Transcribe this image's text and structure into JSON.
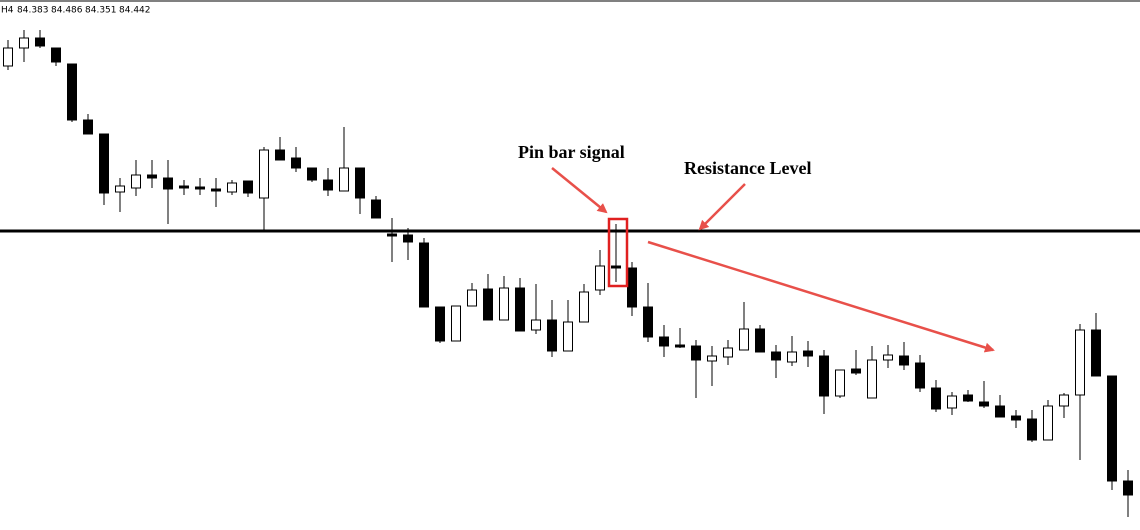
{
  "chart_data": {
    "type": "candlestick",
    "header": {
      "timeframe": "H4",
      "ohlc": [
        84.383,
        84.486,
        84.351,
        84.442
      ]
    },
    "ylim": [
      83.5,
      86.15
    ],
    "series": [
      {
        "name": "price",
        "color": "#000000",
        "open": [
          85.82,
          85.91,
          85.96,
          85.91,
          85.83,
          85.55,
          85.48,
          85.19,
          85.21,
          85.275,
          85.26,
          85.22,
          85.215,
          85.205,
          85.19,
          85.245,
          85.16,
          85.4,
          85.36,
          85.31,
          85.25,
          85.195,
          85.31,
          85.15,
          84.98,
          84.975,
          84.935,
          84.615,
          84.445,
          84.62,
          84.705,
          84.55,
          84.71,
          84.5,
          84.55,
          84.395,
          84.54,
          84.7,
          84.82,
          84.81,
          84.615,
          84.465,
          84.425,
          84.42,
          84.345,
          84.365,
          84.4,
          84.505,
          84.39,
          84.34,
          84.395,
          84.37,
          84.17,
          84.305,
          84.16,
          84.35,
          84.37,
          84.335,
          84.21,
          84.11,
          84.175,
          84.14,
          84.12,
          84.07,
          84.055,
          83.95,
          84.12,
          84.175,
          84.5,
          84.27,
          83.745
        ],
        "high": [
          85.95,
          86.0,
          86.0,
          85.91,
          85.83,
          85.58,
          85.48,
          85.26,
          85.35,
          85.35,
          85.35,
          85.25,
          85.26,
          85.26,
          85.25,
          85.245,
          85.415,
          85.465,
          85.415,
          85.31,
          85.31,
          85.515,
          85.31,
          85.17,
          85.06,
          85.01,
          84.96,
          84.615,
          84.62,
          84.735,
          84.78,
          84.77,
          84.76,
          84.73,
          84.65,
          84.65,
          84.73,
          84.9,
          85.03,
          84.84,
          84.735,
          84.525,
          84.51,
          84.45,
          84.42,
          84.45,
          84.64,
          84.525,
          84.425,
          84.47,
          84.445,
          84.4,
          84.3,
          84.4,
          84.42,
          84.425,
          84.44,
          84.375,
          84.25,
          84.19,
          84.2,
          84.245,
          84.175,
          84.1,
          84.1,
          84.15,
          84.185,
          84.53,
          84.585,
          84.27,
          83.8
        ],
        "low": [
          85.8,
          85.84,
          85.91,
          85.82,
          85.54,
          85.48,
          85.125,
          85.09,
          85.17,
          85.21,
          85.03,
          85.175,
          85.175,
          85.115,
          85.175,
          85.165,
          85.0,
          85.35,
          85.29,
          85.24,
          85.17,
          85.195,
          85.08,
          85.06,
          84.84,
          84.85,
          84.615,
          84.435,
          84.445,
          84.62,
          84.55,
          84.55,
          84.495,
          84.48,
          84.365,
          84.395,
          84.54,
          84.675,
          84.74,
          84.57,
          84.44,
          84.365,
          84.41,
          84.16,
          84.22,
          84.325,
          84.4,
          84.39,
          84.26,
          84.32,
          84.315,
          84.08,
          84.16,
          84.275,
          84.16,
          84.31,
          84.3,
          84.19,
          84.09,
          84.075,
          84.14,
          84.11,
          84.065,
          84.01,
          83.94,
          83.95,
          84.06,
          83.85,
          84.27,
          83.7,
          83.565
        ],
        "close": [
          85.91,
          85.96,
          85.92,
          85.84,
          85.55,
          85.48,
          85.185,
          85.22,
          85.275,
          85.26,
          85.205,
          85.21,
          85.205,
          85.195,
          85.235,
          85.185,
          85.4,
          85.35,
          85.31,
          85.25,
          85.2,
          85.31,
          85.16,
          85.06,
          84.97,
          84.94,
          84.615,
          84.445,
          84.62,
          84.7,
          84.55,
          84.71,
          84.495,
          84.55,
          84.395,
          84.54,
          84.69,
          84.82,
          84.81,
          84.615,
          84.465,
          84.42,
          84.415,
          84.35,
          84.37,
          84.41,
          84.505,
          84.39,
          84.35,
          84.39,
          84.37,
          84.17,
          84.3,
          84.285,
          84.35,
          84.375,
          84.325,
          84.21,
          84.105,
          84.17,
          84.145,
          84.12,
          84.065,
          84.05,
          83.95,
          84.12,
          84.175,
          84.5,
          84.27,
          83.745,
          83.675
        ]
      }
    ],
    "annotations": [
      {
        "text": "Pin bar signal"
      },
      {
        "text": "Resistance Level",
        "value": 84.995
      }
    ]
  }
}
